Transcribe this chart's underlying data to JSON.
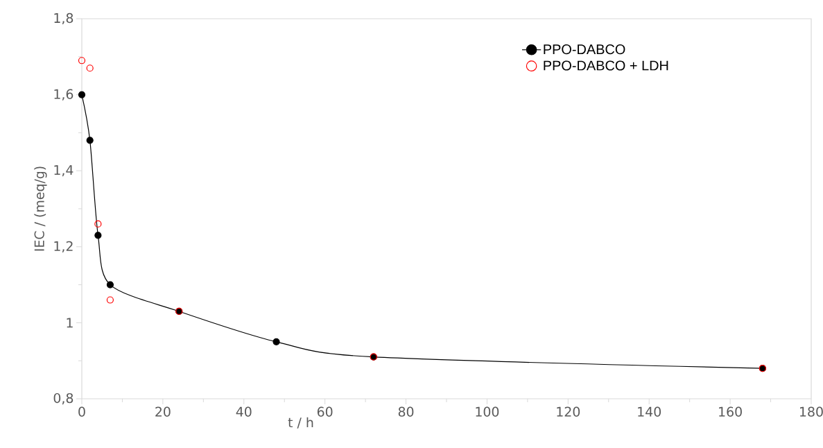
{
  "chart_data": {
    "type": "line",
    "xlabel": "t / h",
    "ylabel": "IEC / (meq/g)",
    "xlim": [
      0,
      180
    ],
    "xticks": [
      0,
      20,
      40,
      60,
      80,
      100,
      120,
      140,
      160,
      180
    ],
    "ylim": [
      0.8,
      1.8
    ],
    "yticks": [
      {
        "value": 0.8,
        "label": "0,8"
      },
      {
        "value": 1.0,
        "label": "1"
      },
      {
        "value": 1.2,
        "label": "1,2"
      },
      {
        "value": 1.4,
        "label": "1,4"
      },
      {
        "value": 1.6,
        "label": "1,6"
      },
      {
        "value": 1.8,
        "label": "1,8"
      }
    ],
    "grid": false,
    "legend": "top right",
    "marker": "circle",
    "series": [
      {
        "name": "PPO-DABCO",
        "color": "#000000",
        "x": [
          0,
          2,
          4,
          7,
          24,
          48,
          72,
          168
        ],
        "values": [
          1.6,
          1.48,
          1.23,
          1.1,
          1.03,
          0.95,
          0.91,
          0.88
        ]
      },
      {
        "name": "PPO-DABCO + LDH",
        "type": "scatter",
        "color": "#ff0000",
        "x": [
          0,
          2,
          4,
          7,
          24,
          72,
          168
        ],
        "values": [
          1.69,
          1.67,
          1.26,
          1.06,
          1.03,
          0.91,
          0.88
        ]
      }
    ]
  }
}
